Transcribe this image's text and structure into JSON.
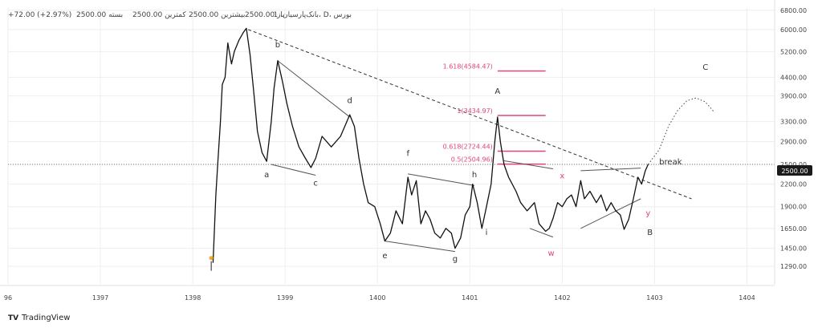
{
  "header": {
    "symbol": "1 ،بانک‌پارسیان، D، بورس",
    "open": "باز 2500.00",
    "high": "بیشترین 2500.00",
    "low": "کمترین 2500.00",
    "close": "بسته 2500.00",
    "change": "+72.00 (+2.97%)"
  },
  "price_tag": "2500.00",
  "branding": {
    "logo": "TV",
    "name": "TradingView"
  },
  "chart_data": {
    "type": "line",
    "title": "",
    "y_scale": "log",
    "ylim": [
      1200,
      6900
    ],
    "xlim": [
      1396,
      1404.3
    ],
    "y_ticks": [
      "6800.00",
      "6000.00",
      "5200.00",
      "4400.00",
      "3900.00",
      "3300.00",
      "2900.00",
      "2500.00",
      "2200.00",
      "1900.00",
      "1650.00",
      "1450.00",
      "1290.00"
    ],
    "x_ticks": [
      "96",
      "1397",
      "1398",
      "1399",
      "1400",
      "1401",
      "1402",
      "1403",
      "1404"
    ],
    "series": [
      {
        "type": "price",
        "points": [
          [
            1398.22,
            1320
          ],
          [
            1398.25,
            2050
          ],
          [
            1398.27,
            2500
          ],
          [
            1398.3,
            3300
          ],
          [
            1398.32,
            4200
          ],
          [
            1398.35,
            4400
          ],
          [
            1398.38,
            5500
          ],
          [
            1398.42,
            4800
          ],
          [
            1398.45,
            5200
          ],
          [
            1398.5,
            5600
          ],
          [
            1398.55,
            5900
          ],
          [
            1398.58,
            6050
          ],
          [
            1398.62,
            5100
          ],
          [
            1398.66,
            4000
          ],
          [
            1398.7,
            3100
          ],
          [
            1398.75,
            2700
          ],
          [
            1398.8,
            2550
          ],
          [
            1398.85,
            3300
          ],
          [
            1398.88,
            4100
          ],
          [
            1398.92,
            4900
          ],
          [
            1398.97,
            4300
          ],
          [
            1399.02,
            3700
          ],
          [
            1399.08,
            3200
          ],
          [
            1399.15,
            2800
          ],
          [
            1399.22,
            2600
          ],
          [
            1399.28,
            2450
          ],
          [
            1399.33,
            2600
          ],
          [
            1399.4,
            3000
          ],
          [
            1399.5,
            2800
          ],
          [
            1399.6,
            3000
          ],
          [
            1399.7,
            3450
          ],
          [
            1399.75,
            3200
          ],
          [
            1399.8,
            2600
          ],
          [
            1399.85,
            2200
          ],
          [
            1399.9,
            1950
          ],
          [
            1399.97,
            1900
          ],
          [
            1400.03,
            1700
          ],
          [
            1400.08,
            1520
          ],
          [
            1400.14,
            1600
          ],
          [
            1400.2,
            1850
          ],
          [
            1400.27,
            1700
          ],
          [
            1400.33,
            2300
          ],
          [
            1400.37,
            2050
          ],
          [
            1400.42,
            2250
          ],
          [
            1400.47,
            1700
          ],
          [
            1400.52,
            1850
          ],
          [
            1400.57,
            1750
          ],
          [
            1400.62,
            1600
          ],
          [
            1400.68,
            1550
          ],
          [
            1400.74,
            1650
          ],
          [
            1400.8,
            1600
          ],
          [
            1400.84,
            1450
          ],
          [
            1400.9,
            1550
          ],
          [
            1400.95,
            1800
          ],
          [
            1401.0,
            1900
          ],
          [
            1401.03,
            2200
          ],
          [
            1401.08,
            1950
          ],
          [
            1401.13,
            1650
          ],
          [
            1401.18,
            1900
          ],
          [
            1401.23,
            2200
          ],
          [
            1401.27,
            2900
          ],
          [
            1401.3,
            3400
          ],
          [
            1401.33,
            2900
          ],
          [
            1401.37,
            2500
          ],
          [
            1401.42,
            2300
          ],
          [
            1401.5,
            2100
          ],
          [
            1401.55,
            1950
          ],
          [
            1401.62,
            1850
          ],
          [
            1401.7,
            1950
          ],
          [
            1401.75,
            1700
          ],
          [
            1401.82,
            1620
          ],
          [
            1401.86,
            1650
          ],
          [
            1401.9,
            1760
          ],
          [
            1401.95,
            1950
          ],
          [
            1402.0,
            1900
          ],
          [
            1402.05,
            2000
          ],
          [
            1402.1,
            2050
          ],
          [
            1402.15,
            1900
          ],
          [
            1402.2,
            2250
          ],
          [
            1402.24,
            2000
          ],
          [
            1402.3,
            2100
          ],
          [
            1402.37,
            1950
          ],
          [
            1402.42,
            2050
          ],
          [
            1402.48,
            1850
          ],
          [
            1402.53,
            1950
          ],
          [
            1402.58,
            1850
          ],
          [
            1402.63,
            1800
          ],
          [
            1402.67,
            1640
          ],
          [
            1402.72,
            1750
          ],
          [
            1402.77,
            2000
          ],
          [
            1402.82,
            2300
          ],
          [
            1402.86,
            2200
          ],
          [
            1402.9,
            2400
          ],
          [
            1402.93,
            2500
          ]
        ]
      },
      {
        "type": "projection",
        "points": [
          [
            1402.93,
            2500
          ],
          [
            1403.05,
            2750
          ],
          [
            1403.15,
            3200
          ],
          [
            1403.25,
            3550
          ],
          [
            1403.35,
            3780
          ],
          [
            1403.45,
            3850
          ],
          [
            1403.55,
            3750
          ],
          [
            1403.65,
            3500
          ]
        ]
      }
    ],
    "trendline": {
      "from": [
        1398.6,
        6000
      ],
      "to": [
        1403.4,
        2000
      ]
    },
    "price_line": 2500,
    "pattern_lines": [
      [
        [
          1398.85,
          2500
        ],
        [
          1399.33,
          2330
        ]
      ],
      [
        [
          1398.92,
          4900
        ],
        [
          1399.7,
          3400
        ]
      ],
      [
        [
          1400.08,
          1520
        ],
        [
          1400.84,
          1420
        ]
      ],
      [
        [
          1400.33,
          2350
        ],
        [
          1401.05,
          2180
        ]
      ],
      [
        [
          1401.37,
          2560
        ],
        [
          1401.9,
          2430
        ]
      ],
      [
        [
          1401.65,
          1650
        ],
        [
          1401.9,
          1560
        ]
      ],
      [
        [
          1402.2,
          2400
        ],
        [
          1402.85,
          2440
        ]
      ],
      [
        [
          1402.2,
          1650
        ],
        [
          1402.85,
          2000
        ]
      ]
    ],
    "wave_labels": [
      {
        "text": "a",
        "x": 1398.8,
        "y": 2300,
        "color": "dark"
      },
      {
        "text": "b",
        "x": 1398.92,
        "y": 5350,
        "color": "dark"
      },
      {
        "text": "c",
        "x": 1399.33,
        "y": 2180,
        "color": "dark"
      },
      {
        "text": "d",
        "x": 1399.7,
        "y": 3720,
        "color": "dark"
      },
      {
        "text": "e",
        "x": 1400.08,
        "y": 1360,
        "color": "dark"
      },
      {
        "text": "f",
        "x": 1400.33,
        "y": 2640,
        "color": "dark"
      },
      {
        "text": "g",
        "x": 1400.84,
        "y": 1330,
        "color": "dark"
      },
      {
        "text": "h",
        "x": 1401.05,
        "y": 2300,
        "color": "dark"
      },
      {
        "text": "i",
        "x": 1401.18,
        "y": 1580,
        "color": "dark"
      },
      {
        "text": "A",
        "x": 1401.3,
        "y": 3950,
        "color": "dark"
      },
      {
        "text": "x",
        "x": 1402.0,
        "y": 2280,
        "color": "red"
      },
      {
        "text": "w",
        "x": 1401.88,
        "y": 1380,
        "color": "red"
      },
      {
        "text": "y",
        "x": 1402.93,
        "y": 1790,
        "color": "red"
      },
      {
        "text": "B",
        "x": 1402.95,
        "y": 1580,
        "color": "dark"
      },
      {
        "text": "C",
        "x": 1403.55,
        "y": 4620,
        "color": "dark"
      },
      {
        "text": "break",
        "x": 1403.05,
        "y": 2500,
        "color": "dark"
      }
    ],
    "fib_levels": [
      {
        "label": "1.618(4584.47)",
        "value": 4584.47
      },
      {
        "label": "1(3434.97)",
        "value": 3434.97
      },
      {
        "label": "0.618(2724.44)",
        "value": 2724.44
      },
      {
        "label": "0.5(2504.96)",
        "value": 2504.96
      }
    ],
    "origin_marker": {
      "x": 1398.2,
      "y": 1320
    },
    "colors": {
      "price": "#111111",
      "fib": "#e0457b",
      "pattern": "#555555",
      "trendline": "#333333",
      "grid": "#eeeeee",
      "marker": "#f5a623"
    }
  }
}
